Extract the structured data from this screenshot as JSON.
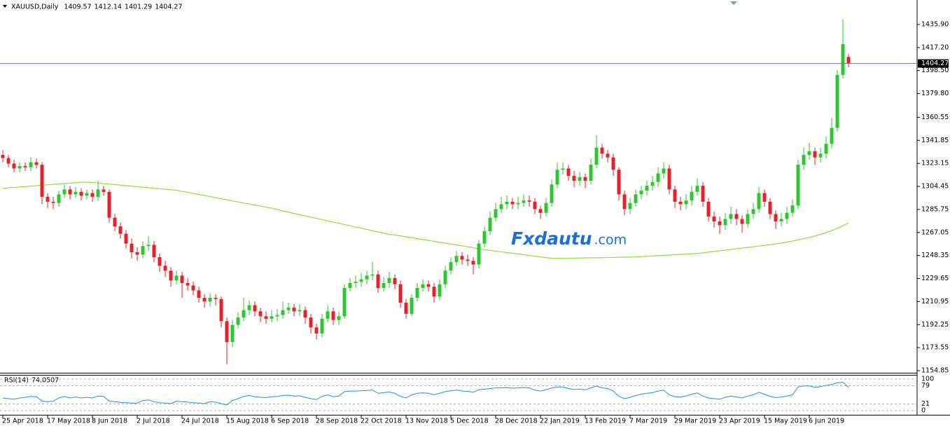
{
  "chart_data": {
    "type": "candlestick",
    "title": "XAUUSD,Daily",
    "up_color": "#2ec82e",
    "down_color": "#e8202a",
    "categories": [
      "25 Apr 2018",
      null,
      null,
      null,
      null,
      null,
      null,
      null,
      "17 May 2018",
      null,
      null,
      null,
      null,
      null,
      null,
      null,
      "8 Jun 2018",
      null,
      null,
      null,
      null,
      null,
      null,
      null,
      "2 Jul 2018",
      null,
      null,
      null,
      null,
      null,
      null,
      null,
      "24 Jul 2018",
      null,
      null,
      null,
      null,
      null,
      null,
      null,
      "15 Aug 2018",
      null,
      null,
      null,
      null,
      null,
      null,
      null,
      "6 Sep 2018",
      null,
      null,
      null,
      null,
      null,
      null,
      null,
      "28 Sep 2018",
      null,
      null,
      null,
      null,
      null,
      null,
      null,
      "22 Oct 2018",
      null,
      null,
      null,
      null,
      null,
      null,
      null,
      "13 Nov 2018",
      null,
      null,
      null,
      null,
      null,
      null,
      null,
      "5 Dec 2018",
      null,
      null,
      null,
      null,
      null,
      null,
      null,
      "28 Dec 2018",
      null,
      null,
      null,
      null,
      null,
      null,
      null,
      "22 Jan 2019",
      null,
      null,
      null,
      null,
      null,
      null,
      null,
      "13 Feb 2019",
      null,
      null,
      null,
      null,
      null,
      null,
      null,
      "7 Mar 2019",
      null,
      null,
      null,
      null,
      null,
      null,
      null,
      "29 Mar 2019",
      null,
      null,
      null,
      null,
      null,
      null,
      null,
      "23 Apr 2019",
      null,
      null,
      null,
      null,
      null,
      null,
      null,
      "15 May 2019",
      null,
      null,
      null,
      null,
      null,
      null,
      null,
      "6 Jun 2019",
      null,
      null,
      null,
      null,
      null,
      null,
      null
    ],
    "open": [
      1330,
      1327.5,
      1323,
      1319,
      1321,
      1320,
      1324,
      1322,
      1296,
      1292,
      1291,
      1298,
      1302,
      1298,
      1300,
      1297,
      1299,
      1296,
      1302,
      1300,
      1279,
      1272,
      1266,
      1258,
      1251,
      1249,
      1256,
      1257,
      1247,
      1240,
      1236,
      1228,
      1232,
      1226,
      1224,
      1220,
      1214,
      1211,
      1214,
      1213,
      1195,
      1178,
      1192,
      1198,
      1204,
      1208,
      1203,
      1199,
      1197,
      1199,
      1200,
      1204,
      1206,
      1203,
      1204,
      1198,
      1190,
      1185,
      1197,
      1203,
      1196,
      1199,
      1222,
      1226,
      1227,
      1229,
      1232,
      1233,
      1222,
      1226,
      1230,
      1225,
      1210,
      1201,
      1214,
      1222,
      1225,
      1223,
      1215,
      1225,
      1236,
      1243,
      1248,
      1245,
      1244,
      1241,
      1258,
      1268,
      1279,
      1286,
      1290,
      1292,
      1290,
      1291,
      1293,
      1292,
      1286,
      1283,
      1291,
      1306,
      1318,
      1319,
      1313,
      1309,
      1312,
      1309,
      1322,
      1336,
      1331,
      1328,
      1318,
      1298,
      1286,
      1291,
      1298,
      1301,
      1305,
      1308,
      1315,
      1319,
      1302,
      1292,
      1290,
      1293,
      1300,
      1305,
      1292,
      1280,
      1276,
      1273,
      1278,
      1282,
      1278,
      1274,
      1282,
      1286,
      1299,
      1292,
      1282,
      1276,
      1278,
      1283,
      1289,
      1322,
      1330,
      1333,
      1328,
      1331,
      1339,
      1352,
      1395,
      1409.57
    ],
    "high": [
      1334,
      1330,
      1326,
      1324,
      1324,
      1328,
      1327,
      1324,
      1299,
      1296,
      1301,
      1306,
      1305,
      1304,
      1303,
      1302,
      1302,
      1309,
      1305,
      1302,
      1282,
      1275,
      1269,
      1262,
      1255,
      1260,
      1264,
      1260,
      1250,
      1244,
      1239,
      1236,
      1235,
      1230,
      1227,
      1223,
      1217,
      1218,
      1217,
      1215,
      1198,
      1196,
      1202,
      1214,
      1212,
      1211,
      1206,
      1203,
      1204,
      1205,
      1211,
      1210,
      1209,
      1209,
      1207,
      1201,
      1193,
      1201,
      1208,
      1206,
      1203,
      1225,
      1230,
      1232,
      1234,
      1236,
      1243,
      1236,
      1231,
      1235,
      1233,
      1228,
      1213,
      1217,
      1226,
      1229,
      1228,
      1226,
      1229,
      1240,
      1247,
      1252,
      1251,
      1249,
      1247,
      1261,
      1272,
      1284,
      1291,
      1296,
      1297,
      1295,
      1296,
      1298,
      1297,
      1295,
      1289,
      1295,
      1310,
      1324,
      1324,
      1322,
      1317,
      1316,
      1315,
      1327,
      1346,
      1339,
      1334,
      1331,
      1320,
      1301,
      1295,
      1302,
      1305,
      1309,
      1313,
      1320,
      1324,
      1322,
      1305,
      1296,
      1298,
      1305,
      1311,
      1308,
      1295,
      1284,
      1280,
      1283,
      1288,
      1286,
      1281,
      1286,
      1291,
      1304,
      1302,
      1295,
      1285,
      1283,
      1288,
      1294,
      1326,
      1336,
      1340,
      1336,
      1336,
      1345,
      1360,
      1399,
      1440,
      1412.14
    ],
    "low": [
      1324,
      1320,
      1316,
      1316,
      1317,
      1317,
      1319,
      1290,
      1287,
      1286,
      1288,
      1295,
      1294,
      1295,
      1293,
      1294,
      1292,
      1293,
      1297,
      1275,
      1268,
      1262,
      1254,
      1246,
      1244,
      1246,
      1252,
      1243,
      1235,
      1231,
      1223,
      1225,
      1214,
      1220,
      1216,
      1210,
      1206,
      1207,
      1208,
      1190,
      1160,
      1174,
      1189,
      1195,
      1200,
      1199,
      1194,
      1193,
      1194,
      1195,
      1197,
      1201,
      1199,
      1199,
      1193,
      1185,
      1180,
      1182,
      1194,
      1192,
      1192,
      1197,
      1219,
      1222,
      1223,
      1225,
      1228,
      1218,
      1219,
      1222,
      1221,
      1206,
      1197,
      1199,
      1211,
      1219,
      1219,
      1210,
      1212,
      1222,
      1233,
      1240,
      1241,
      1240,
      1233,
      1238,
      1255,
      1265,
      1276,
      1283,
      1286,
      1286,
      1286,
      1288,
      1288,
      1282,
      1278,
      1280,
      1288,
      1303,
      1314,
      1309,
      1304,
      1305,
      1303,
      1306,
      1319,
      1327,
      1324,
      1313,
      1293,
      1281,
      1282,
      1288,
      1294,
      1297,
      1301,
      1304,
      1311,
      1298,
      1287,
      1285,
      1286,
      1289,
      1297,
      1288,
      1276,
      1271,
      1266,
      1269,
      1274,
      1273,
      1267,
      1271,
      1278,
      1283,
      1288,
      1278,
      1270,
      1272,
      1274,
      1280,
      1286,
      1318,
      1326,
      1322,
      1324,
      1327,
      1335,
      1349,
      1392,
      1401.29
    ],
    "close": [
      1327.5,
      1323,
      1319,
      1321,
      1320,
      1324,
      1322,
      1296,
      1292,
      1291,
      1298,
      1302,
      1298,
      1300,
      1297,
      1299,
      1296,
      1302,
      1300,
      1279,
      1272,
      1266,
      1258,
      1251,
      1249,
      1256,
      1257,
      1247,
      1240,
      1236,
      1228,
      1232,
      1226,
      1224,
      1220,
      1214,
      1211,
      1214,
      1213,
      1195,
      1178,
      1192,
      1198,
      1204,
      1208,
      1203,
      1199,
      1197,
      1199,
      1200,
      1204,
      1206,
      1203,
      1204,
      1198,
      1190,
      1185,
      1197,
      1203,
      1196,
      1199,
      1222,
      1226,
      1227,
      1229,
      1232,
      1233,
      1222,
      1226,
      1230,
      1225,
      1210,
      1201,
      1214,
      1222,
      1225,
      1223,
      1215,
      1225,
      1236,
      1243,
      1248,
      1245,
      1244,
      1241,
      1258,
      1268,
      1279,
      1286,
      1290,
      1292,
      1290,
      1291,
      1293,
      1292,
      1286,
      1283,
      1291,
      1306,
      1318,
      1319,
      1313,
      1309,
      1312,
      1309,
      1322,
      1336,
      1331,
      1328,
      1318,
      1298,
      1286,
      1291,
      1298,
      1301,
      1305,
      1308,
      1315,
      1319,
      1302,
      1292,
      1290,
      1293,
      1300,
      1305,
      1292,
      1280,
      1276,
      1273,
      1278,
      1282,
      1278,
      1274,
      1282,
      1286,
      1299,
      1292,
      1282,
      1276,
      1278,
      1283,
      1289,
      1322,
      1330,
      1333,
      1328,
      1331,
      1339,
      1352,
      1395,
      1420,
      1404.27
    ],
    "ma": {
      "color": "#8fe03c",
      "values": [
        1303,
        1303.3,
        1303.7,
        1304,
        1304.4,
        1304.7,
        1305.1,
        1305.4,
        1305.8,
        1306.1,
        1306.4,
        1306.8,
        1307.1,
        1307.5,
        1307.8,
        1308,
        1307.6,
        1307.2,
        1306.7,
        1306.3,
        1305.9,
        1305.5,
        1305.1,
        1304.7,
        1304.2,
        1303.8,
        1303.4,
        1303,
        1302.6,
        1302.2,
        1301.7,
        1301.3,
        1300.4,
        1299.6,
        1298.7,
        1297.9,
        1297,
        1296.2,
        1295.3,
        1294.4,
        1293.6,
        1292.7,
        1291.9,
        1291,
        1290.2,
        1289.3,
        1288.5,
        1287.6,
        1286.8,
        1285.9,
        1284.5,
        1283.5,
        1282.5,
        1281.5,
        1280.5,
        1279.5,
        1278.5,
        1277.5,
        1276.5,
        1275.5,
        1274.5,
        1273.5,
        1272.5,
        1271.5,
        1270.5,
        1269.5,
        1268.5,
        1267.5,
        1266.5,
        1265.5,
        1265,
        1264.3,
        1263.5,
        1262.8,
        1262.1,
        1261.3,
        1260.6,
        1259.9,
        1259.1,
        1258.4,
        1257.7,
        1256.9,
        1256.2,
        1255.5,
        1254.7,
        1253.7,
        1253.1,
        1252.5,
        1251.9,
        1251.3,
        1250.7,
        1250.2,
        1249.6,
        1249,
        1248.4,
        1247.8,
        1247.2,
        1246.6,
        1246,
        1246,
        1246,
        1246.1,
        1246.2,
        1246.3,
        1246.4,
        1246.5,
        1246.5,
        1246.6,
        1246.7,
        1246.8,
        1246.9,
        1247,
        1247,
        1247.2,
        1247.5,
        1247.7,
        1248,
        1248.2,
        1248.5,
        1248.7,
        1249,
        1249.2,
        1249.5,
        1249.7,
        1250,
        1250.5,
        1251.1,
        1251.6,
        1252.2,
        1252.7,
        1253.3,
        1253.8,
        1254.4,
        1254.9,
        1255.5,
        1256,
        1256.6,
        1257.1,
        1257.8,
        1258.5,
        1259.3,
        1260.1,
        1261,
        1262,
        1263,
        1264.2,
        1265.5,
        1267,
        1268.6,
        1270.4,
        1272.5,
        1274.8
      ]
    },
    "ylim": [
      1153.14,
      1454.67
    ],
    "yticks": [
      {
        "value": 1435.9,
        "label": "1435.90"
      },
      {
        "value": 1417.2,
        "label": "1417.20"
      },
      {
        "value": 1398.5,
        "label": "1398.50"
      },
      {
        "value": 1379.8,
        "label": "1379.80"
      },
      {
        "value": 1360.55,
        "label": "1360.55"
      },
      {
        "value": 1341.85,
        "label": "1341.85"
      },
      {
        "value": 1323.15,
        "label": "1323.15"
      },
      {
        "value": 1304.45,
        "label": "1304.45"
      },
      {
        "value": 1285.75,
        "label": "1285.75"
      },
      {
        "value": 1267.05,
        "label": "1267.05"
      },
      {
        "value": 1248.35,
        "label": "1248.35"
      },
      {
        "value": 1229.65,
        "label": "1229.65"
      },
      {
        "value": 1210.95,
        "label": "1210.95"
      },
      {
        "value": 1192.25,
        "label": "1192.25"
      },
      {
        "value": 1173.55,
        "label": "1173.55"
      },
      {
        "value": 1154.85,
        "label": "1154.85"
      }
    ],
    "rsi": {
      "title": "RSI(14)",
      "color": "#1e90ff",
      "ylim": [
        0,
        100
      ],
      "yticks": [
        100,
        79,
        21,
        0
      ],
      "values": [
        40,
        38,
        36,
        40,
        42,
        45,
        44,
        30,
        28,
        30,
        40,
        45,
        40,
        43,
        40,
        42,
        40,
        46,
        45,
        30,
        28,
        26,
        25,
        24,
        24,
        32,
        34,
        28,
        25,
        24,
        22,
        30,
        28,
        27,
        25,
        24,
        22,
        28,
        27,
        22,
        18,
        32,
        38,
        45,
        48,
        44,
        42,
        41,
        44,
        45,
        48,
        49,
        46,
        47,
        42,
        38,
        35,
        45,
        50,
        44,
        46,
        60,
        62,
        62,
        63,
        64,
        65,
        55,
        57,
        59,
        55,
        45,
        40,
        50,
        55,
        56,
        55,
        50,
        55,
        60,
        63,
        65,
        62,
        61,
        58,
        66,
        68,
        70,
        72,
        72,
        73,
        71,
        72,
        73,
        72,
        65,
        62,
        66,
        72,
        75,
        75,
        70,
        67,
        68,
        66,
        72,
        78,
        72,
        70,
        62,
        45,
        38,
        42,
        48,
        52,
        55,
        57,
        62,
        65,
        50,
        44,
        43,
        46,
        52,
        56,
        46,
        40,
        38,
        36,
        42,
        46,
        43,
        40,
        46,
        50,
        58,
        52,
        45,
        41,
        43,
        46,
        50,
        75,
        78,
        78,
        74,
        76,
        80,
        83,
        88,
        90,
        74.0507
      ]
    },
    "watermark": {
      "main": "Fxdautu",
      "suffix": ".com"
    }
  }
}
